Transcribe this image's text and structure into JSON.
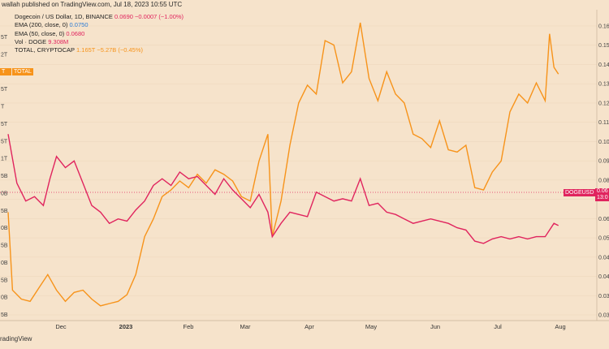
{
  "header": {
    "publisher": "wallah published on TradingView.com, Jul 18, 2023 10:55 UTC"
  },
  "legend": [
    {
      "label": "Dogecoin / US Dollar, 1D, BINANCE",
      "value": "0.0690  −0.0007 (−1.00%)"
    },
    {
      "label": "EMA (200, close, 0)",
      "value": "0.0750"
    },
    {
      "label": "EMA (50, close, 0)",
      "value": "0.0680"
    },
    {
      "label": "Vol · DOGE",
      "value": "9.308M"
    },
    {
      "label": "TOTAL, CRYPTOCAP",
      "value": "1.165T  −5.27B (−0.45%)"
    }
  ],
  "tags": {
    "total": "TOTAL",
    "left_total": "T",
    "doge": "DOGEUSD",
    "price_top": "0.06",
    "price_bottom": "13:0"
  },
  "footer": {
    "brand": "radingView"
  },
  "colors": {
    "doge": "#e0245e",
    "total": "#f7931a",
    "bg": "#f6e3cb",
    "grid": "#ecd6bb"
  },
  "chart_data": {
    "type": "line",
    "x_ticks": [
      "Dec",
      "2023",
      "Feb",
      "Mar",
      "Apr",
      "May",
      "Jun",
      "Jul",
      "Aug"
    ],
    "right_ticks": [
      "0.16",
      "0.15",
      "0.14",
      "0.13",
      "0.12",
      "0.11",
      "0.10",
      "0.09",
      "0.08",
      "0.07",
      "0.06",
      "0.05",
      "0.04",
      "0.04",
      "0.03",
      "0.03"
    ],
    "left_ticks": [
      "5T",
      "2T",
      "T",
      "5T",
      "T",
      "5T",
      "5T",
      "1T",
      "5B",
      "0B",
      "5B",
      "0B",
      "5B",
      "0B",
      "5B",
      "0B",
      "5B"
    ],
    "ylim": [
      0.03,
      0.16
    ],
    "series": [
      {
        "color": "#e0245e",
        "axis": "right",
        "x": [
          "2022-11-10",
          "2022-11-14",
          "2022-11-18",
          "2022-11-22",
          "2022-11-26",
          "2022-11-29",
          "2022-12-02",
          "2022-12-06",
          "2022-12-10",
          "2022-12-14",
          "2022-12-18",
          "2022-12-22",
          "2022-12-26",
          "2022-12-30",
          "2023-01-03",
          "2023-01-07",
          "2023-01-11",
          "2023-01-15",
          "2023-01-19",
          "2023-01-23",
          "2023-01-27",
          "2023-01-31",
          "2023-02-04",
          "2023-02-08",
          "2023-02-12",
          "2023-02-16",
          "2023-02-20",
          "2023-02-24",
          "2023-02-28",
          "2023-03-04",
          "2023-03-08",
          "2023-03-10",
          "2023-03-14",
          "2023-03-18",
          "2023-03-22",
          "2023-03-26",
          "2023-03-30",
          "2023-04-03",
          "2023-04-07",
          "2023-04-11",
          "2023-04-15",
          "2023-04-19",
          "2023-04-23",
          "2023-04-27",
          "2023-05-01",
          "2023-05-05",
          "2023-05-09",
          "2023-05-13",
          "2023-05-17",
          "2023-05-21",
          "2023-05-25",
          "2023-05-29",
          "2023-06-02",
          "2023-06-06",
          "2023-06-10",
          "2023-06-14",
          "2023-06-18",
          "2023-06-22",
          "2023-06-26",
          "2023-06-30",
          "2023-07-04",
          "2023-07-08",
          "2023-07-12",
          "2023-07-16",
          "2023-07-18"
        ],
        "values": [
          0.11,
          0.088,
          0.08,
          0.082,
          0.078,
          0.09,
          0.1,
          0.095,
          0.098,
          0.088,
          0.078,
          0.075,
          0.07,
          0.072,
          0.071,
          0.076,
          0.08,
          0.087,
          0.09,
          0.087,
          0.093,
          0.09,
          0.091,
          0.087,
          0.083,
          0.09,
          0.085,
          0.081,
          0.077,
          0.083,
          0.075,
          0.064,
          0.07,
          0.075,
          0.074,
          0.073,
          0.084,
          0.082,
          0.08,
          0.081,
          0.08,
          0.09,
          0.078,
          0.079,
          0.075,
          0.074,
          0.072,
          0.07,
          0.071,
          0.072,
          0.071,
          0.07,
          0.068,
          0.067,
          0.062,
          0.061,
          0.063,
          0.064,
          0.063,
          0.064,
          0.063,
          0.064,
          0.064,
          0.07,
          0.069
        ]
      },
      {
        "color": "#f7931a",
        "axis": "left",
        "x": [
          "2022-11-10",
          "2022-11-12",
          "2022-11-16",
          "2022-11-20",
          "2022-11-24",
          "2022-11-28",
          "2022-12-02",
          "2022-12-06",
          "2022-12-10",
          "2022-12-14",
          "2022-12-18",
          "2022-12-22",
          "2022-12-26",
          "2022-12-30",
          "2023-01-03",
          "2023-01-07",
          "2023-01-11",
          "2023-01-15",
          "2023-01-19",
          "2023-01-23",
          "2023-01-27",
          "2023-01-31",
          "2023-02-04",
          "2023-02-08",
          "2023-02-12",
          "2023-02-16",
          "2023-02-20",
          "2023-02-24",
          "2023-02-28",
          "2023-03-04",
          "2023-03-08",
          "2023-03-10",
          "2023-03-14",
          "2023-03-18",
          "2023-03-22",
          "2023-03-26",
          "2023-03-30",
          "2023-04-03",
          "2023-04-07",
          "2023-04-11",
          "2023-04-15",
          "2023-04-19",
          "2023-04-23",
          "2023-04-27",
          "2023-05-01",
          "2023-05-05",
          "2023-05-09",
          "2023-05-13",
          "2023-05-17",
          "2023-05-21",
          "2023-05-25",
          "2023-05-29",
          "2023-06-02",
          "2023-06-06",
          "2023-06-10",
          "2023-06-14",
          "2023-06-18",
          "2023-06-22",
          "2023-06-26",
          "2023-06-30",
          "2023-07-04",
          "2023-07-08",
          "2023-07-12",
          "2023-07-14",
          "2023-07-16",
          "2023-07-18"
        ],
        "values": [
          0.075,
          0.04,
          0.036,
          0.035,
          0.041,
          0.047,
          0.04,
          0.035,
          0.039,
          0.04,
          0.036,
          0.033,
          0.034,
          0.035,
          0.038,
          0.047,
          0.064,
          0.072,
          0.082,
          0.085,
          0.089,
          0.086,
          0.092,
          0.088,
          0.094,
          0.092,
          0.089,
          0.082,
          0.08,
          0.098,
          0.11,
          0.064,
          0.08,
          0.105,
          0.124,
          0.132,
          0.128,
          0.152,
          0.15,
          0.133,
          0.138,
          0.16,
          0.135,
          0.125,
          0.138,
          0.128,
          0.124,
          0.11,
          0.108,
          0.104,
          0.116,
          0.103,
          0.102,
          0.105,
          0.086,
          0.085,
          0.093,
          0.098,
          0.12,
          0.128,
          0.124,
          0.133,
          0.125,
          0.155,
          0.14,
          0.137
        ]
      }
    ]
  }
}
